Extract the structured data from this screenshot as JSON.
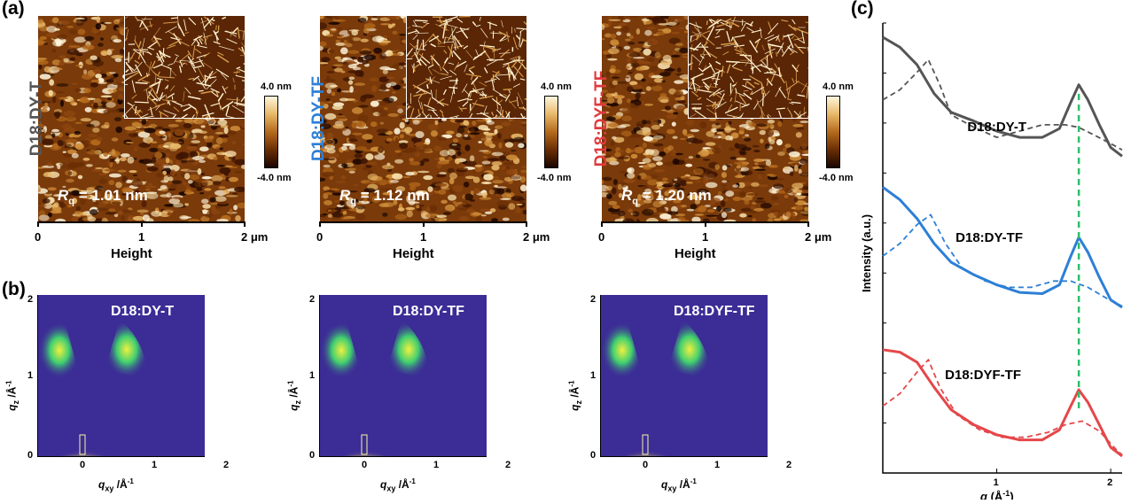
{
  "panel_labels": {
    "a": "(a)",
    "b": "(b)",
    "c": "(c)"
  },
  "afm": [
    {
      "sample": "D18:DY-T",
      "sample_color": "#555555",
      "rq_symbol": "R",
      "rq_sub": "q",
      "rq_value": " = 1.01 nm"
    },
    {
      "sample": "D18:DY-TF",
      "sample_color": "#2d7fd6",
      "rq_symbol": "R",
      "rq_sub": "q",
      "rq_value": " = 1.12 nm"
    },
    {
      "sample": "D18:DYF-TF",
      "sample_color": "#e03a3e",
      "rq_symbol": "R",
      "rq_sub": "q",
      "rq_value": " = 1.20 nm"
    }
  ],
  "afm_axis": {
    "ticks": [
      "0",
      "1",
      "2 μm"
    ],
    "title": "Height"
  },
  "colorbar": {
    "max": "4.0 nm",
    "min": "-4.0 nm"
  },
  "giwaxs": [
    {
      "sample": "D18:DY-T"
    },
    {
      "sample": "D18:DY-TF"
    },
    {
      "sample": "D18:DYF-TF"
    }
  ],
  "giwaxs_axis": {
    "x_ticks": [
      "0",
      "1",
      "2"
    ],
    "y_ticks": [
      "0",
      "1",
      "2"
    ],
    "x_title": "q",
    "x_sub": "xy",
    "x_unit": " /Å",
    "y_title": "q",
    "y_sub": "z",
    "y_unit": " /Å",
    "inv": "-1"
  },
  "profiles": {
    "ylabel": "Intensity (a.u.)",
    "xlabel_q": "q",
    "xlabel_unit": " (Å",
    "xlabel_inv": "-1",
    "xlabel_close": ")",
    "x_ticks": [
      "1",
      "2"
    ],
    "labels": [
      "D18:DY-T",
      "D18:DY-TF",
      "D18:DYF-TF"
    ],
    "colors": [
      "#555555",
      "#2d7fd6",
      "#e5474a"
    ],
    "guide_color": "#2fbf6a"
  },
  "chart_data": {
    "type": "line",
    "title": "",
    "xlabel": "q (Å-1)",
    "ylabel": "Intensity (a.u.)",
    "xlim": [
      0,
      2.1
    ],
    "guide_line_q": 1.72,
    "series": [
      {
        "name": "D18:DY-T",
        "style": "solid",
        "offset": 2,
        "x": [
          0.0,
          0.15,
          0.3,
          0.45,
          0.6,
          0.8,
          1.0,
          1.2,
          1.4,
          1.55,
          1.65,
          1.72,
          1.8,
          1.9,
          2.0,
          2.1
        ],
        "y": [
          1.0,
          0.92,
          0.78,
          0.55,
          0.4,
          0.33,
          0.25,
          0.2,
          0.2,
          0.27,
          0.48,
          0.62,
          0.5,
          0.3,
          0.12,
          0.05
        ]
      },
      {
        "name": "D18:DY-T",
        "style": "dashed",
        "offset": 2,
        "x": [
          0.0,
          0.15,
          0.3,
          0.4,
          0.5,
          0.6,
          0.8,
          1.0,
          1.2,
          1.4,
          1.6,
          1.72,
          1.85,
          2.0,
          2.1
        ],
        "y": [
          0.5,
          0.58,
          0.72,
          0.82,
          0.62,
          0.38,
          0.28,
          0.2,
          0.25,
          0.3,
          0.3,
          0.28,
          0.22,
          0.15,
          0.1
        ]
      },
      {
        "name": "D18:DY-TF",
        "style": "solid",
        "offset": 1,
        "x": [
          0.0,
          0.15,
          0.3,
          0.45,
          0.6,
          0.8,
          1.0,
          1.2,
          1.4,
          1.55,
          1.65,
          1.72,
          1.8,
          1.9,
          2.0,
          2.1
        ],
        "y": [
          1.0,
          0.9,
          0.75,
          0.55,
          0.4,
          0.3,
          0.22,
          0.16,
          0.15,
          0.22,
          0.45,
          0.6,
          0.48,
          0.28,
          0.1,
          0.04
        ]
      },
      {
        "name": "D18:DY-TF",
        "style": "dashed",
        "offset": 1,
        "x": [
          0.0,
          0.15,
          0.3,
          0.42,
          0.55,
          0.7,
          0.9,
          1.1,
          1.3,
          1.5,
          1.65,
          1.8,
          1.95,
          2.1
        ],
        "y": [
          0.45,
          0.55,
          0.7,
          0.78,
          0.55,
          0.35,
          0.25,
          0.2,
          0.2,
          0.25,
          0.25,
          0.2,
          0.12,
          0.05
        ]
      },
      {
        "name": "D18:DYF-TF",
        "style": "solid",
        "offset": 0,
        "x": [
          0.0,
          0.15,
          0.3,
          0.45,
          0.6,
          0.8,
          1.0,
          1.2,
          1.4,
          1.55,
          1.65,
          1.72,
          1.8,
          1.9,
          2.0,
          2.1
        ],
        "y": [
          0.9,
          0.88,
          0.8,
          0.6,
          0.42,
          0.3,
          0.22,
          0.18,
          0.18,
          0.26,
          0.45,
          0.58,
          0.48,
          0.3,
          0.12,
          0.05
        ]
      },
      {
        "name": "D18:DYF-TF",
        "style": "dashed",
        "offset": 0,
        "x": [
          0.0,
          0.15,
          0.3,
          0.4,
          0.5,
          0.65,
          0.85,
          1.05,
          1.25,
          1.45,
          1.6,
          1.75,
          1.9,
          2.05,
          2.1
        ],
        "y": [
          0.45,
          0.55,
          0.72,
          0.82,
          0.6,
          0.38,
          0.26,
          0.2,
          0.2,
          0.24,
          0.3,
          0.33,
          0.25,
          0.1,
          0.06
        ]
      }
    ]
  }
}
